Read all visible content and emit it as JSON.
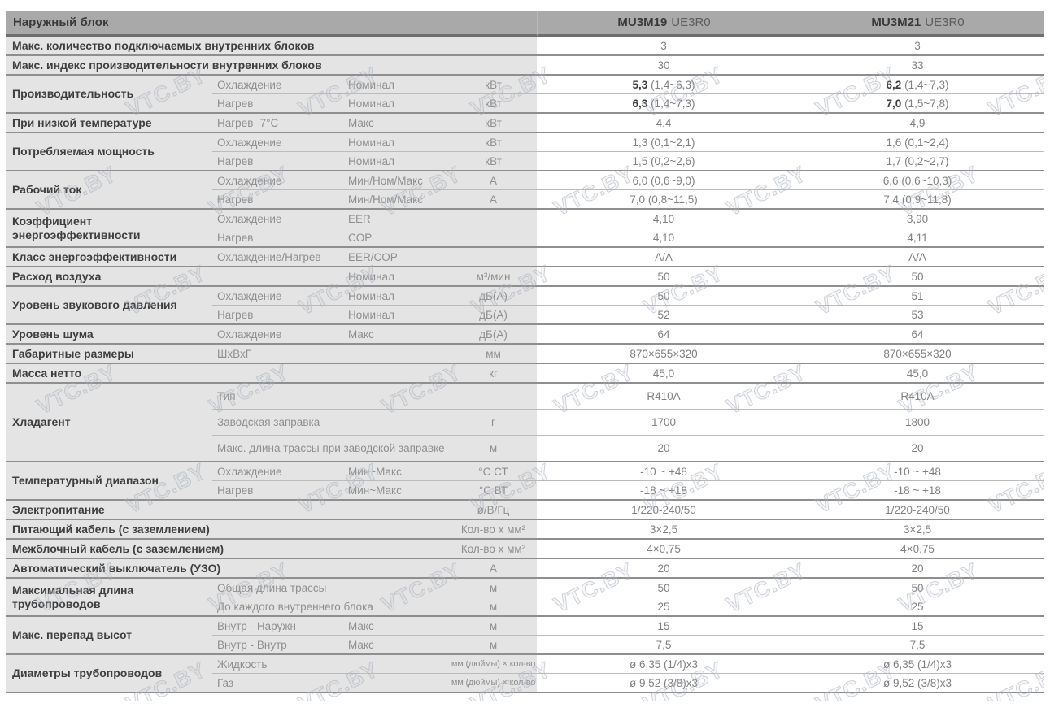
{
  "header": {
    "title": "Наружный блок",
    "models": [
      {
        "bold": "MU3M19",
        "rest": "UE3R0"
      },
      {
        "bold": "MU3M21",
        "rest": "UE3R0"
      }
    ]
  },
  "watermark": {
    "text": "VTC.BY"
  },
  "groups": [
    {
      "rows": [
        {
          "wide": "Макс. количество подключаемых внутренних блоков",
          "v1": "3",
          "v2": "3"
        }
      ]
    },
    {
      "rows": [
        {
          "wide": "Макс. индекс производительности внутренних блоков",
          "v1": "30",
          "v2": "33"
        }
      ]
    },
    {
      "cat": "Производительность",
      "rows": [
        {
          "sub": "Охлаждение",
          "param": "Номинал",
          "unit": "кВт",
          "v1": "5,3 (1,4~6,3)",
          "v2": "6,2 (1,4~7,3)",
          "boldLead": true
        },
        {
          "sub": "Нагрев",
          "param": "Номинал",
          "unit": "кВт",
          "v1": "6,3 (1,4~7,3)",
          "v2": "7,0 (1,5~7,8)",
          "boldLead": true
        }
      ]
    },
    {
      "cat": "При низкой температуре",
      "rows": [
        {
          "sub": "Нагрев -7°C",
          "param": "Макс",
          "unit": "кВт",
          "v1": "4,4",
          "v2": "4,9"
        }
      ]
    },
    {
      "cat": "Потребляемая мощность",
      "rows": [
        {
          "sub": "Охлаждение",
          "param": "Номинал",
          "unit": "кВт",
          "v1": "1,3 (0,1~2,1)",
          "v2": "1,6 (0,1~2,4)"
        },
        {
          "sub": "Нагрев",
          "param": "Номинал",
          "unit": "кВт",
          "v1": "1,5 (0,2~2,6)",
          "v2": "1,7 (0,2~2,7)"
        }
      ]
    },
    {
      "cat": "Рабочий ток",
      "rows": [
        {
          "sub": "Охлаждение",
          "param": "Мин/Ном/Макс",
          "unit": "А",
          "v1": "6,0 (0,6~9,0)",
          "v2": "6,6 (0,6~10,3)"
        },
        {
          "sub": "Нагрев",
          "param": "Мин/Ном/Макс",
          "unit": "А",
          "v1": "7,0 (0,8~11,5)",
          "v2": "7,4 (0,9~11,8)"
        }
      ]
    },
    {
      "cat": "Коэффициент энергоэффективности",
      "rows": [
        {
          "sub": "Охлаждение",
          "param": "EER",
          "unit": "",
          "v1": "4,10",
          "v2": "3,90"
        },
        {
          "sub": "Нагрев",
          "param": "COP",
          "unit": "",
          "v1": "4,10",
          "v2": "4,11"
        }
      ]
    },
    {
      "cat": "Класс энергоэффективности",
      "rows": [
        {
          "sub": "Охлаждение/Нагрев",
          "param": "EER/COP",
          "unit": "",
          "v1": "А/А",
          "v2": "А/А"
        }
      ]
    },
    {
      "cat": "Расход воздуха",
      "rows": [
        {
          "sub": "",
          "param": "Номинал",
          "unit": "м³/мин",
          "v1": "50",
          "v2": "50"
        }
      ]
    },
    {
      "cat": "Уровень звукового давления",
      "rows": [
        {
          "sub": "Охлаждение",
          "param": "Номинал",
          "unit": "дБ(А)",
          "v1": "50",
          "v2": "51"
        },
        {
          "sub": "Нагрев",
          "param": "Номинал",
          "unit": "дБ(А)",
          "v1": "52",
          "v2": "53"
        }
      ]
    },
    {
      "cat": "Уровень шума",
      "rows": [
        {
          "sub": "Охлаждение",
          "param": "Макс",
          "unit": "дБ(А)",
          "v1": "64",
          "v2": "64"
        }
      ]
    },
    {
      "cat": "Габаритные размеры",
      "rows": [
        {
          "sub": "ШхВхГ",
          "param": "",
          "unit": "мм",
          "v1": "870×655×320",
          "v2": "870×655×320"
        }
      ]
    },
    {
      "rows": [
        {
          "wide3": "Масса нетто",
          "unit": "кг",
          "v1": "45,0",
          "v2": "45,0"
        }
      ]
    },
    {
      "cat": "Хладагент",
      "tall": true,
      "rows": [
        {
          "sub2": "Тип",
          "unit": "",
          "v1": "R410A",
          "v2": "R410A"
        },
        {
          "sub2": "Заводская заправка",
          "unit": "г",
          "v1": "1700",
          "v2": "1800"
        },
        {
          "sub2": "Макс. длина трассы при заводской заправке",
          "unit": "м",
          "v1": "20",
          "v2": "20"
        }
      ]
    },
    {
      "cat": "Температурный диапазон",
      "rows": [
        {
          "sub": "Охлаждение",
          "param": "Мин~Макс",
          "unit": "°C СТ",
          "v1": "-10 ~ +48",
          "v2": "-10 ~ +48"
        },
        {
          "sub": "Нагрев",
          "param": "Мин~Макс",
          "unit": "°C ВТ",
          "v1": "-18 ~ +18",
          "v2": "-18 ~ +18"
        }
      ]
    },
    {
      "rows": [
        {
          "wide3": "Электропитание",
          "unit": "ø/В/Гц",
          "v1": "1/220-240/50",
          "v2": "1/220-240/50"
        }
      ]
    },
    {
      "rows": [
        {
          "wide3": "Питающий кабель (с заземлением)",
          "unit": "Кол-во х мм²",
          "v1": "3×2,5",
          "v2": "3×2,5"
        }
      ]
    },
    {
      "rows": [
        {
          "wide3": "Межблочный кабель (с заземлением)",
          "unit": "Кол-во х мм²",
          "v1": "4×0,75",
          "v2": "4×0,75"
        }
      ]
    },
    {
      "rows": [
        {
          "wide3": "Автоматический выключатель (УЗО)",
          "unit": "А",
          "v1": "20",
          "v2": "20"
        }
      ]
    },
    {
      "cat": "Максимальная длина трубопроводов",
      "rows": [
        {
          "sub2": "Общая длина трассы",
          "unit": "м",
          "v1": "50",
          "v2": "50"
        },
        {
          "sub2": "До каждого внутреннего блока",
          "unit": "м",
          "v1": "25",
          "v2": "25"
        }
      ]
    },
    {
      "cat": "Макс. перепад высот",
      "rows": [
        {
          "sub": "Внутр - Наружн",
          "param": "Макс",
          "unit": "м",
          "v1": "15",
          "v2": "15"
        },
        {
          "sub": "Внутр - Внутр",
          "param": "Макс",
          "unit": "м",
          "v1": "7,5",
          "v2": "7,5"
        }
      ]
    },
    {
      "cat": "Диаметры трубопроводов",
      "rows": [
        {
          "sub2": "Жидкость",
          "unit": "мм (дюймы) × кол-во",
          "smallUnit": true,
          "v1": "ø 6,35 (1/4)x3",
          "v2": "ø 6,35 (1/4)x3"
        },
        {
          "sub2": "Газ",
          "unit": "мм (дюймы) × кол-во",
          "smallUnit": true,
          "v1": "ø 9,52 (3/8)x3",
          "v2": "ø 9,52 (3/8)x3"
        }
      ]
    }
  ]
}
